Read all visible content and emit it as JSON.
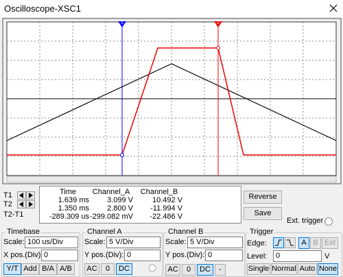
{
  "window": {
    "title": "Oscilloscope-XSC1"
  },
  "screen": {
    "cursors": [
      "1",
      "2"
    ]
  },
  "readout": {
    "row_labels": [
      "T1",
      "T2",
      "T2-T1"
    ],
    "columns": [
      "Time",
      "Channel_A",
      "Channel_B"
    ],
    "rows": [
      [
        "1.639 ms",
        "3.099 V",
        "10.492 V"
      ],
      [
        "1.350 ms",
        "2.800 V",
        "-11.994 V"
      ],
      [
        "-289.309 us",
        "-299.082 mV",
        "-22.486 V"
      ]
    ]
  },
  "buttons": {
    "reverse": "Reverse",
    "save": "Save"
  },
  "ext_trigger": "Ext. trigger",
  "timebase": {
    "title": "Timebase",
    "scale_label": "Scale:",
    "scale": "100 us/Div",
    "xpos_label": "X pos.(Div):",
    "xpos": "0",
    "modes": [
      "Y/T",
      "Add",
      "B/A",
      "A/B"
    ]
  },
  "channel_a": {
    "title": "Channel A",
    "scale_label": "Scale:",
    "scale": "5  V/Div",
    "ypos_label": "Y pos.(Div):",
    "ypos": "0",
    "coupling": [
      "AC",
      "0",
      "DC"
    ]
  },
  "channel_b": {
    "title": "Channel B",
    "scale_label": "Scale:",
    "scale": "5  V/Div",
    "ypos_label": "Y pos.(Div):",
    "ypos": "0",
    "coupling": [
      "AC",
      "0",
      "DC",
      "-"
    ]
  },
  "trigger": {
    "title": "Trigger",
    "edge_label": "Edge:",
    "sources": [
      "A",
      "B",
      "Ext"
    ],
    "level_label": "Level:",
    "level": "0",
    "level_unit": "V",
    "modes": [
      "Single",
      "Normal",
      "Auto",
      "None"
    ]
  }
}
